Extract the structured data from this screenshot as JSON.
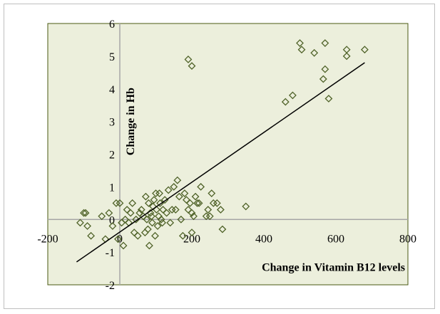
{
  "colors": {
    "plot_background": "#ecefdc",
    "plot_border": "#4a5a12",
    "axis_line": "#a6a6a6",
    "marker": "#4f6228",
    "trendline": "#000000"
  },
  "chart_data": {
    "type": "scatter",
    "title": "",
    "xlabel": "Change in Vitamin B12 levels",
    "ylabel": "Change in Hb",
    "xlim": [
      -200,
      800
    ],
    "ylim": [
      -2,
      6
    ],
    "x_ticks": [
      "-200",
      "0",
      "200",
      "400",
      "600",
      "800"
    ],
    "y_ticks": [
      "-2",
      "-1",
      "0",
      "1",
      "2",
      "3",
      "4",
      "5",
      "6"
    ],
    "grid": false,
    "legend": "none",
    "marker": "diamond-open",
    "trendline": {
      "type": "linear",
      "x": [
        -120,
        680
      ],
      "y": [
        -1.3,
        4.8
      ]
    },
    "points": [
      [
        -110,
        -0.1
      ],
      [
        -100,
        0.2
      ],
      [
        -95,
        0.2
      ],
      [
        -90,
        -0.2
      ],
      [
        -80,
        -0.5
      ],
      [
        -50,
        0.1
      ],
      [
        -40,
        -0.6
      ],
      [
        -30,
        0.2
      ],
      [
        -20,
        -0.2
      ],
      [
        -10,
        0.5
      ],
      [
        -5,
        -0.6
      ],
      [
        0,
        0.5
      ],
      [
        5,
        -0.1
      ],
      [
        10,
        -0.8
      ],
      [
        15,
        0.0
      ],
      [
        20,
        0.3
      ],
      [
        25,
        -0.1
      ],
      [
        30,
        0.2
      ],
      [
        35,
        0.5
      ],
      [
        40,
        -0.4
      ],
      [
        45,
        0.0
      ],
      [
        50,
        -0.5
      ],
      [
        55,
        0.2
      ],
      [
        60,
        0.3
      ],
      [
        65,
        0.1
      ],
      [
        70,
        -0.4
      ],
      [
        72,
        0.7
      ],
      [
        75,
        0.0
      ],
      [
        78,
        -0.3
      ],
      [
        80,
        0.5
      ],
      [
        82,
        -0.8
      ],
      [
        85,
        0.2
      ],
      [
        88,
        0.1
      ],
      [
        90,
        -0.1
      ],
      [
        92,
        0.4
      ],
      [
        95,
        0.6
      ],
      [
        98,
        -0.5
      ],
      [
        100,
        0.8
      ],
      [
        102,
        0.3
      ],
      [
        105,
        -0.2
      ],
      [
        108,
        0.1
      ],
      [
        110,
        0.8
      ],
      [
        112,
        0.5
      ],
      [
        115,
        0.0
      ],
      [
        118,
        -0.1
      ],
      [
        120,
        0.3
      ],
      [
        125,
        0.6
      ],
      [
        130,
        0.2
      ],
      [
        135,
        0.9
      ],
      [
        140,
        -0.1
      ],
      [
        145,
        0.3
      ],
      [
        150,
        1.0
      ],
      [
        155,
        0.3
      ],
      [
        160,
        1.2
      ],
      [
        165,
        0.7
      ],
      [
        170,
        0.0
      ],
      [
        175,
        -0.5
      ],
      [
        180,
        0.8
      ],
      [
        185,
        0.6
      ],
      [
        190,
        0.3
      ],
      [
        195,
        0.5
      ],
      [
        200,
        0.2
      ],
      [
        200,
        -0.4
      ],
      [
        205,
        0.1
      ],
      [
        210,
        0.7
      ],
      [
        215,
        0.5
      ],
      [
        220,
        0.5
      ],
      [
        225,
        1.0
      ],
      [
        240,
        0.1
      ],
      [
        245,
        0.3
      ],
      [
        250,
        0.1
      ],
      [
        255,
        0.8
      ],
      [
        260,
        0.5
      ],
      [
        270,
        0.5
      ],
      [
        280,
        0.3
      ],
      [
        285,
        -0.3
      ],
      [
        350,
        0.4
      ],
      [
        190,
        4.9
      ],
      [
        200,
        4.7
      ],
      [
        460,
        3.6
      ],
      [
        480,
        3.8
      ],
      [
        500,
        5.4
      ],
      [
        505,
        5.2
      ],
      [
        540,
        5.1
      ],
      [
        570,
        5.4
      ],
      [
        570,
        4.6
      ],
      [
        565,
        4.3
      ],
      [
        580,
        3.7
      ],
      [
        630,
        5.2
      ],
      [
        630,
        5.0
      ],
      [
        680,
        5.2
      ]
    ]
  }
}
